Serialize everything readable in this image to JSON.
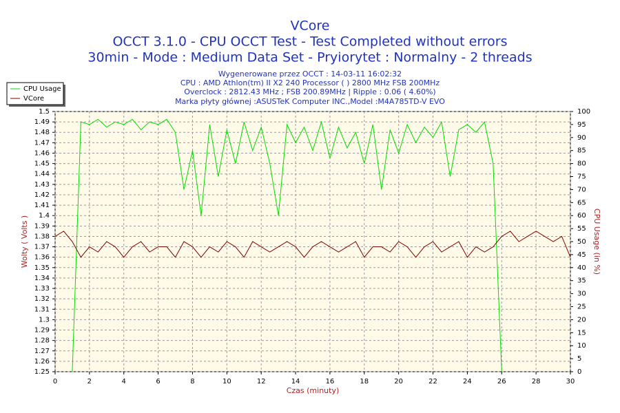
{
  "chart_data": {
    "type": "line",
    "title": "VCore",
    "subtitle": [
      "OCCT 3.1.0 - CPU OCCT Test - Test Completed without errors",
      "30min - Mode : Medium Data Set - Pryiorytet : Normalny - 2 threads"
    ],
    "info": [
      "Wygenerowane przez OCCT : 14-03-11 16:02:32",
      "CPU : AMD Athlon(tm) II X2 240 Processor (  ) 2800 MHz FSB 200MHz",
      "Overclock : 2812.43 MHz ; FSB 200.89MHz | Ripple : 0.06 ( 4.60%)",
      "Marka płyty głównej :ASUSTeK Computer INC.,Model :M4A785TD-V EVO"
    ],
    "xlabel": "Czas (minuty)",
    "ylabel": "Wolty ( Volts )",
    "y2label": "CPU Usage (in %)",
    "x": [
      0,
      0.5,
      1,
      1.5,
      2,
      2.5,
      3,
      3.5,
      4,
      4.5,
      5,
      5.5,
      6,
      6.5,
      7,
      7.5,
      8,
      8.5,
      9,
      9.5,
      10,
      10.5,
      11,
      11.5,
      12,
      12.5,
      13,
      13.5,
      14,
      14.5,
      15,
      15.5,
      16,
      16.5,
      17,
      17.5,
      18,
      18.5,
      19,
      19.5,
      20,
      20.5,
      21,
      21.5,
      22,
      22.5,
      23,
      23.5,
      24,
      24.5,
      25,
      25.5,
      26,
      26.5,
      27,
      27.5,
      28,
      28.5,
      29,
      29.5,
      30
    ],
    "series": [
      {
        "name": "CPU Usage",
        "color": "#00dd00",
        "axis": "y2",
        "values": [
          null,
          null,
          0,
          96,
          95,
          97,
          94,
          96,
          95,
          97,
          93,
          96,
          95,
          97,
          92,
          70,
          85,
          60,
          95,
          75,
          93,
          80,
          96,
          85,
          94,
          80,
          60,
          95,
          88,
          94,
          85,
          96,
          82,
          94,
          86,
          92,
          80,
          95,
          70,
          93,
          84,
          95,
          88,
          94,
          90,
          96,
          75,
          93,
          95,
          92,
          96,
          80,
          0,
          null,
          null,
          null,
          null,
          null,
          null,
          null,
          null
        ]
      },
      {
        "name": "VCore",
        "color": "#800000",
        "values": [
          1.38,
          1.385,
          1.375,
          1.36,
          1.37,
          1.365,
          1.375,
          1.37,
          1.36,
          1.37,
          1.375,
          1.365,
          1.37,
          1.37,
          1.36,
          1.375,
          1.37,
          1.36,
          1.37,
          1.365,
          1.375,
          1.37,
          1.36,
          1.375,
          1.37,
          1.365,
          1.37,
          1.375,
          1.37,
          1.36,
          1.37,
          1.375,
          1.37,
          1.365,
          1.37,
          1.375,
          1.36,
          1.37,
          1.37,
          1.365,
          1.375,
          1.37,
          1.36,
          1.37,
          1.375,
          1.365,
          1.37,
          1.375,
          1.36,
          1.37,
          1.365,
          1.37,
          1.38,
          1.385,
          1.375,
          1.38,
          1.385,
          1.38,
          1.375,
          1.38,
          1.36
        ]
      }
    ],
    "xlim": [
      0,
      30
    ],
    "xticks": [
      0,
      2,
      4,
      6,
      8,
      10,
      12,
      14,
      16,
      18,
      20,
      22,
      24,
      26,
      28,
      30
    ],
    "ylim": [
      1.25,
      1.5
    ],
    "yticks": [
      1.25,
      1.26,
      1.27,
      1.28,
      1.29,
      1.3,
      1.31,
      1.32,
      1.33,
      1.34,
      1.35,
      1.36,
      1.37,
      1.38,
      1.39,
      1.4,
      1.41,
      1.42,
      1.43,
      1.44,
      1.45,
      1.46,
      1.47,
      1.48,
      1.49,
      1.5
    ],
    "y2lim": [
      0,
      100
    ],
    "y2ticks": [
      0,
      5,
      10,
      15,
      20,
      25,
      30,
      35,
      40,
      45,
      50,
      55,
      60,
      65,
      70,
      75,
      80,
      85,
      90,
      95,
      100
    ],
    "grid": true
  }
}
